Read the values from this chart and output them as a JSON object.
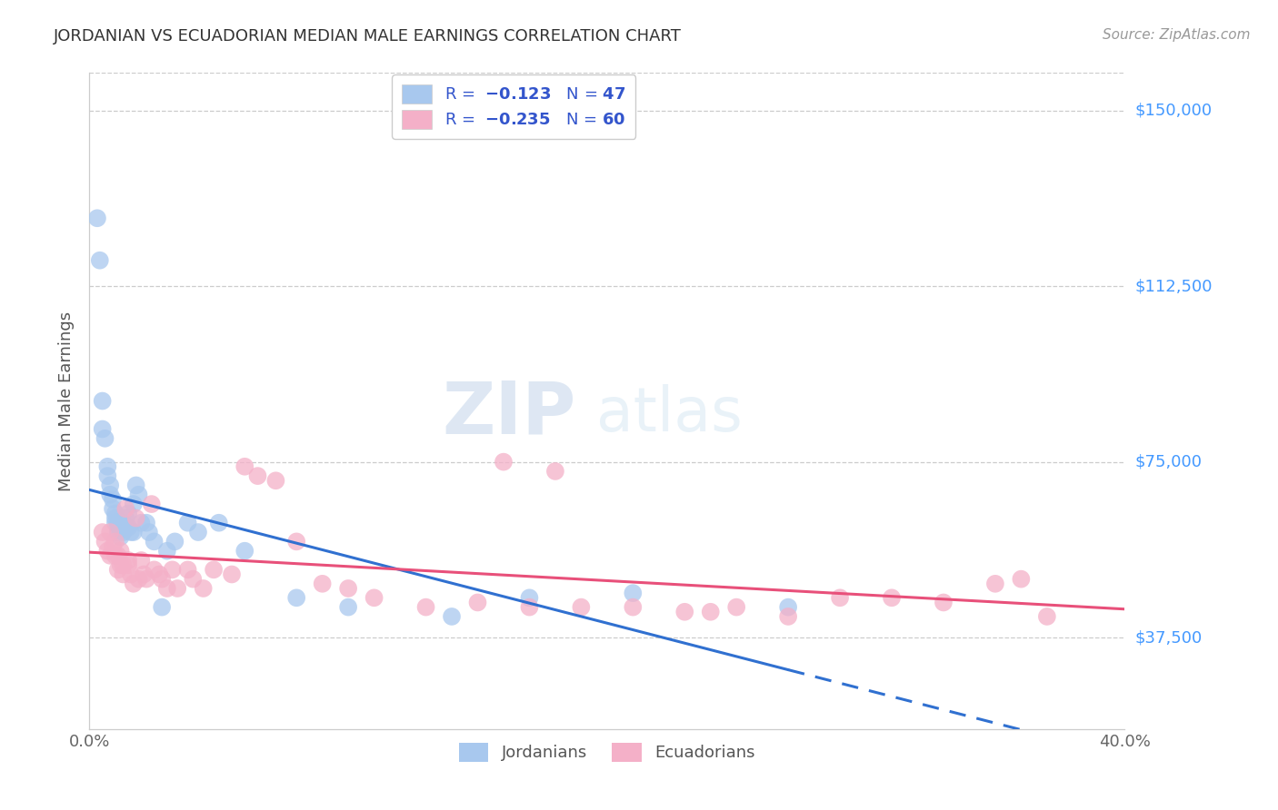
{
  "title": "JORDANIAN VS ECUADORIAN MEDIAN MALE EARNINGS CORRELATION CHART",
  "source": "Source: ZipAtlas.com",
  "ylabel": "Median Male Earnings",
  "xlim": [
    0.0,
    0.4
  ],
  "ylim": [
    18000,
    158000
  ],
  "ytick_vals": [
    37500,
    75000,
    112500,
    150000
  ],
  "ytick_labels": [
    "$37,500",
    "$75,000",
    "$112,500",
    "$150,000"
  ],
  "xtick_vals": [
    0.0,
    0.05,
    0.1,
    0.15,
    0.2,
    0.25,
    0.3,
    0.35,
    0.4
  ],
  "xtick_labels": [
    "0.0%",
    "",
    "",
    "",
    "",
    "",
    "",
    "",
    "40.0%"
  ],
  "blue_color": "#a8c8ee",
  "pink_color": "#f4b0c8",
  "trend_blue": "#3070d0",
  "trend_pink": "#e8507a",
  "watermark_zip": "ZIP",
  "watermark_atlas": "atlas",
  "jordanians_x": [
    0.003,
    0.004,
    0.005,
    0.005,
    0.006,
    0.007,
    0.007,
    0.008,
    0.008,
    0.009,
    0.009,
    0.01,
    0.01,
    0.01,
    0.011,
    0.011,
    0.011,
    0.012,
    0.012,
    0.013,
    0.013,
    0.014,
    0.014,
    0.015,
    0.015,
    0.016,
    0.017,
    0.017,
    0.018,
    0.019,
    0.02,
    0.022,
    0.023,
    0.025,
    0.028,
    0.03,
    0.033,
    0.038,
    0.042,
    0.05,
    0.06,
    0.08,
    0.1,
    0.14,
    0.17,
    0.21,
    0.27
  ],
  "jordanians_y": [
    127000,
    118000,
    88000,
    82000,
    80000,
    74000,
    72000,
    70000,
    68000,
    67000,
    65000,
    64000,
    63000,
    62000,
    62000,
    61000,
    60000,
    61000,
    59000,
    62000,
    60000,
    63000,
    61000,
    64000,
    61000,
    60000,
    66000,
    60000,
    70000,
    68000,
    62000,
    62000,
    60000,
    58000,
    44000,
    56000,
    58000,
    62000,
    60000,
    62000,
    56000,
    46000,
    44000,
    42000,
    46000,
    47000,
    44000
  ],
  "ecuadorians_x": [
    0.005,
    0.006,
    0.007,
    0.008,
    0.008,
    0.009,
    0.01,
    0.01,
    0.011,
    0.011,
    0.012,
    0.012,
    0.013,
    0.013,
    0.014,
    0.015,
    0.015,
    0.016,
    0.017,
    0.018,
    0.019,
    0.02,
    0.021,
    0.022,
    0.024,
    0.025,
    0.027,
    0.028,
    0.03,
    0.032,
    0.034,
    0.038,
    0.04,
    0.044,
    0.048,
    0.055,
    0.06,
    0.065,
    0.072,
    0.08,
    0.09,
    0.1,
    0.11,
    0.13,
    0.15,
    0.17,
    0.19,
    0.21,
    0.23,
    0.25,
    0.27,
    0.29,
    0.31,
    0.33,
    0.35,
    0.37,
    0.16,
    0.18,
    0.24,
    0.36
  ],
  "ecuadorians_y": [
    60000,
    58000,
    56000,
    60000,
    55000,
    57000,
    55000,
    58000,
    55000,
    52000,
    56000,
    53000,
    53000,
    51000,
    65000,
    54000,
    53000,
    51000,
    49000,
    63000,
    50000,
    54000,
    51000,
    50000,
    66000,
    52000,
    51000,
    50000,
    48000,
    52000,
    48000,
    52000,
    50000,
    48000,
    52000,
    51000,
    74000,
    72000,
    71000,
    58000,
    49000,
    48000,
    46000,
    44000,
    45000,
    44000,
    44000,
    44000,
    43000,
    44000,
    42000,
    46000,
    46000,
    45000,
    49000,
    42000,
    75000,
    73000,
    43000,
    50000
  ]
}
